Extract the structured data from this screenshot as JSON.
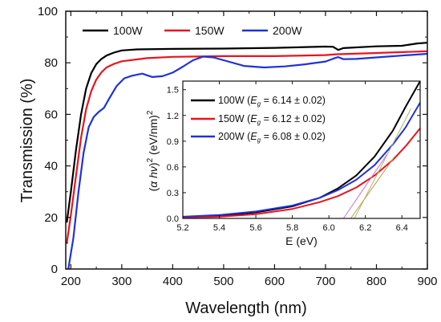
{
  "chart_data": [
    {
      "type": "line",
      "xlabel": "Wavelength (nm)",
      "ylabel": "Transmission (%)",
      "xlim": [
        190,
        900
      ],
      "ylim": [
        0,
        100
      ],
      "xticks": [
        200,
        300,
        400,
        500,
        600,
        700,
        800,
        900
      ],
      "yticks": [
        0,
        20,
        40,
        60,
        80,
        100
      ],
      "grid": false,
      "legend_position": "top-left",
      "series": [
        {
          "name": "100W",
          "color": "#000000",
          "points": [
            [
              192,
              18
            ],
            [
              200,
              30
            ],
            [
              210,
              46
            ],
            [
              220,
              60
            ],
            [
              230,
              70
            ],
            [
              240,
              76
            ],
            [
              250,
              79.5
            ],
            [
              260,
              81.5
            ],
            [
              270,
              82.8
            ],
            [
              285,
              84
            ],
            [
              300,
              84.8
            ],
            [
              330,
              85.2
            ],
            [
              400,
              85.4
            ],
            [
              500,
              85.5
            ],
            [
              600,
              85.8
            ],
            [
              700,
              86.3
            ],
            [
              715,
              86.2
            ],
            [
              725,
              85
            ],
            [
              735,
              85.7
            ],
            [
              800,
              86.4
            ],
            [
              850,
              86.6
            ],
            [
              880,
              87.5
            ],
            [
              900,
              87.8
            ]
          ]
        },
        {
          "name": "150W",
          "color": "#e8141e",
          "points": [
            [
              192,
              10
            ],
            [
              200,
              21
            ],
            [
              210,
              36
            ],
            [
              220,
              51
            ],
            [
              230,
              62
            ],
            [
              240,
              69
            ],
            [
              250,
              73.5
            ],
            [
              260,
              76.3
            ],
            [
              270,
              78.2
            ],
            [
              285,
              79.6
            ],
            [
              300,
              80.6
            ],
            [
              350,
              81.8
            ],
            [
              400,
              82.3
            ],
            [
              500,
              82.6
            ],
            [
              600,
              82.6
            ],
            [
              700,
              83
            ],
            [
              720,
              83.3
            ],
            [
              800,
              83.8
            ],
            [
              900,
              84.5
            ]
          ]
        },
        {
          "name": "200W",
          "color": "#1f32d8",
          "points": [
            [
              195,
              0
            ],
            [
              205,
              12
            ],
            [
              215,
              30
            ],
            [
              225,
              45
            ],
            [
              235,
              55
            ],
            [
              245,
              59
            ],
            [
              255,
              61
            ],
            [
              265,
              62.5
            ],
            [
              275,
              66
            ],
            [
              290,
              71
            ],
            [
              305,
              74
            ],
            [
              320,
              75
            ],
            [
              340,
              75.8
            ],
            [
              360,
              74.5
            ],
            [
              380,
              74.8
            ],
            [
              400,
              76.2
            ],
            [
              420,
              78.5
            ],
            [
              440,
              81
            ],
            [
              460,
              82.4
            ],
            [
              480,
              82.1
            ],
            [
              500,
              81
            ],
            [
              540,
              78.8
            ],
            [
              580,
              78.2
            ],
            [
              620,
              78.6
            ],
            [
              660,
              79.4
            ],
            [
              700,
              80.5
            ],
            [
              715,
              81.6
            ],
            [
              725,
              82.2
            ],
            [
              735,
              81.4
            ],
            [
              760,
              81.5
            ],
            [
              800,
              82.1
            ],
            [
              850,
              82.8
            ],
            [
              900,
              83.5
            ]
          ]
        }
      ]
    },
    {
      "type": "line",
      "xlabel": "E (eV)",
      "ylabel": "(α hν)² (eV/nm)²",
      "xlim": [
        5.2,
        6.5
      ],
      "ylim": [
        0,
        1.6
      ],
      "xticks": [
        5.2,
        5.4,
        5.6,
        5.8,
        6.0,
        6.2,
        6.4
      ],
      "yticks": [
        0.0,
        0.3,
        0.6,
        0.9,
        1.2,
        1.5
      ],
      "legend_position": "top-left",
      "series": [
        {
          "name": "100W (Eg = 6.14 ± 0.02)",
          "label_prefix": "100W (",
          "eg_letter": "E",
          "eg_sub": "g",
          "label_suffix": " = 6.14 ± 0.02)",
          "color": "#000000",
          "points": [
            [
              5.2,
              0.01
            ],
            [
              5.4,
              0.03
            ],
            [
              5.6,
              0.07
            ],
            [
              5.8,
              0.14
            ],
            [
              5.95,
              0.24
            ],
            [
              6.05,
              0.35
            ],
            [
              6.15,
              0.5
            ],
            [
              6.25,
              0.72
            ],
            [
              6.35,
              1.02
            ],
            [
              6.42,
              1.3
            ],
            [
              6.5,
              1.6
            ]
          ]
        },
        {
          "name": "150W (Eg = 6.12 ± 0.02)",
          "label_prefix": "150W (",
          "eg_letter": "E",
          "eg_sub": "g",
          "label_suffix": " = 6.12 ± 0.02)",
          "color": "#e8141e",
          "points": [
            [
              5.2,
              0.01
            ],
            [
              5.4,
              0.02
            ],
            [
              5.6,
              0.05
            ],
            [
              5.8,
              0.11
            ],
            [
              5.95,
              0.19
            ],
            [
              6.05,
              0.26
            ],
            [
              6.15,
              0.36
            ],
            [
              6.25,
              0.5
            ],
            [
              6.35,
              0.68
            ],
            [
              6.42,
              0.84
            ],
            [
              6.5,
              1.05
            ]
          ]
        },
        {
          "name": "200W (Eg = 6.08 ± 0.02)",
          "label_prefix": "200W (",
          "eg_letter": "E",
          "eg_sub": "g",
          "label_suffix": " = 6.08 ± 0.02)",
          "color": "#1f32d8",
          "points": [
            [
              5.2,
              0.02
            ],
            [
              5.4,
              0.04
            ],
            [
              5.6,
              0.08
            ],
            [
              5.8,
              0.15
            ],
            [
              5.95,
              0.24
            ],
            [
              6.05,
              0.33
            ],
            [
              6.15,
              0.45
            ],
            [
              6.25,
              0.62
            ],
            [
              6.35,
              0.86
            ],
            [
              6.42,
              1.06
            ],
            [
              6.5,
              1.35
            ]
          ]
        }
      ],
      "tangent_fits": [
        {
          "color": "#b0b860",
          "points": [
            [
              6.14,
              0.0
            ],
            [
              6.45,
              1.28
            ]
          ]
        },
        {
          "color": "#c09850",
          "points": [
            [
              6.12,
              0.0
            ],
            [
              6.36,
              0.72
            ]
          ]
        },
        {
          "color": "#d070d0",
          "points": [
            [
              6.08,
              0.0
            ],
            [
              6.32,
              0.75
            ]
          ]
        }
      ]
    }
  ]
}
